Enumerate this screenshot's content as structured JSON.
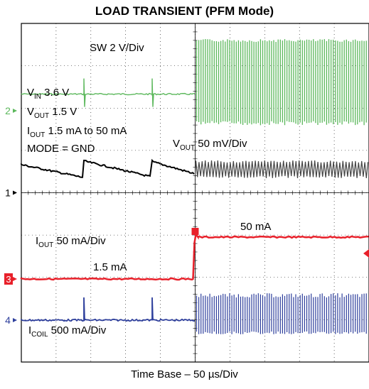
{
  "chart_data": {
    "type": "line",
    "title": "LOAD TRANSIENT (PFM Mode)",
    "xlabel": "Time Base – 50 µs/Div",
    "grid": true,
    "divisions": {
      "x": 10,
      "y": 8
    },
    "channels": [
      {
        "marker": "2",
        "label": "SW 2 V/Div",
        "color": "#5cb85c"
      },
      {
        "marker": "1",
        "label": "V",
        "sub": "OUT",
        "label_rest": " 50 mV/Div",
        "color": "#000000"
      },
      {
        "marker": "3",
        "label": "I",
        "sub": "OUT",
        "label_rest": " 50 mA/Div",
        "color": "#e8202a"
      },
      {
        "marker": "4",
        "label": "I",
        "sub": "COIL",
        "label_rest": " 500 mA/Div",
        "color": "#2e3f9c"
      }
    ],
    "conditions": [
      {
        "label": "V",
        "sub": "IN",
        "rest": " 3.6 V"
      },
      {
        "label": "V",
        "sub": "OUT",
        "rest": " 1.5 V"
      },
      {
        "label": "I",
        "sub": "OUT",
        "rest": " 1.5 mA to 50 mA"
      },
      {
        "label": "MODE = GND"
      }
    ],
    "annotations": [
      "1.5 mA",
      "50 mA"
    ]
  }
}
